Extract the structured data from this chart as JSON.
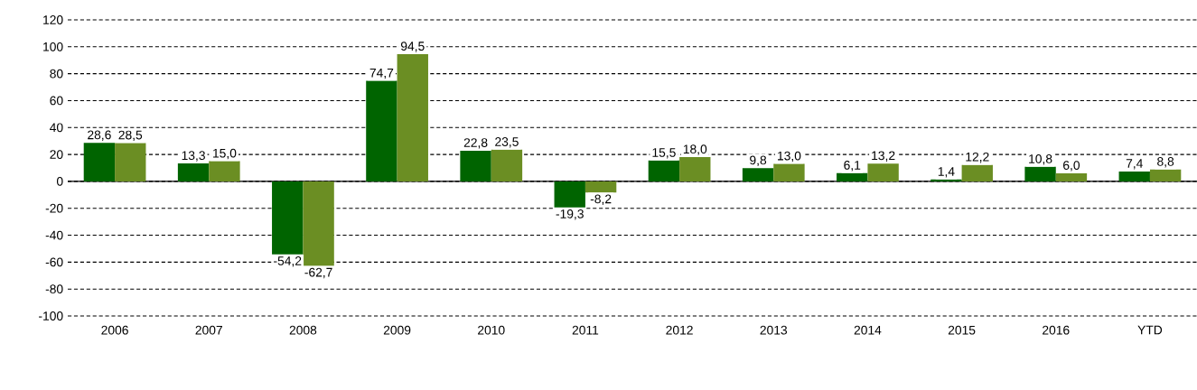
{
  "chart_data": {
    "type": "bar",
    "categories": [
      "2006",
      "2007",
      "2008",
      "2009",
      "2010",
      "2011",
      "2012",
      "2013",
      "2014",
      "2015",
      "2016",
      "YTD"
    ],
    "series": [
      {
        "color": "#006400",
        "values": [
          28.6,
          13.3,
          -54.2,
          74.7,
          22.8,
          -19.3,
          15.5,
          9.8,
          6.1,
          1.4,
          10.8,
          7.4
        ],
        "value_labels": [
          "28,6",
          "13,3",
          "-54,2",
          "74,7",
          "22,8",
          "-19,3",
          "15,5",
          "9,8",
          "6,1",
          "1,4",
          "10,8",
          "7,4"
        ]
      },
      {
        "color": "#6b8e23",
        "values": [
          28.5,
          15.0,
          -62.7,
          94.5,
          23.5,
          -8.2,
          18.0,
          13.0,
          13.2,
          12.2,
          6.0,
          8.8
        ],
        "value_labels": [
          "28,5",
          "15,0",
          "-62,7",
          "94,5",
          "23,5",
          "-8,2",
          "18,0",
          "13,0",
          "13,2",
          "12,2",
          "6,0",
          "8,8"
        ]
      }
    ],
    "ylim": [
      -100,
      120
    ],
    "yticks": [
      -100,
      -80,
      -60,
      -40,
      -20,
      0,
      20,
      40,
      60,
      80,
      100,
      120
    ],
    "grid": "y"
  }
}
